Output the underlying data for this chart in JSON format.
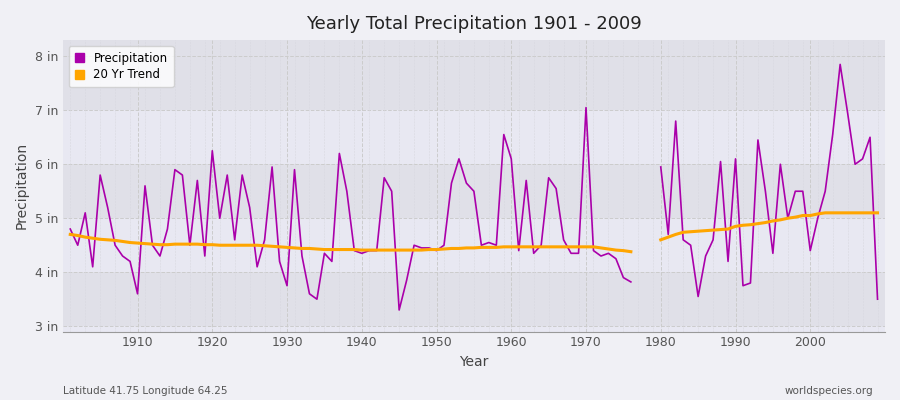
{
  "title": "Yearly Total Precipitation 1901 - 2009",
  "xlabel": "Year",
  "ylabel": "Precipitation",
  "lat_lon_label": "Latitude 41.75 Longitude 64.25",
  "source_label": "worldspecies.org",
  "years": [
    1901,
    1902,
    1903,
    1904,
    1905,
    1906,
    1907,
    1908,
    1909,
    1910,
    1911,
    1912,
    1913,
    1914,
    1915,
    1916,
    1917,
    1918,
    1919,
    1920,
    1921,
    1922,
    1923,
    1924,
    1925,
    1926,
    1927,
    1928,
    1929,
    1930,
    1931,
    1932,
    1933,
    1934,
    1935,
    1936,
    1937,
    1938,
    1939,
    1940,
    1941,
    1942,
    1943,
    1944,
    1945,
    1946,
    1947,
    1948,
    1949,
    1950,
    1951,
    1952,
    1953,
    1954,
    1955,
    1956,
    1957,
    1958,
    1959,
    1960,
    1961,
    1962,
    1963,
    1964,
    1965,
    1966,
    1967,
    1968,
    1969,
    1970,
    1971,
    1972,
    1973,
    1974,
    1975,
    1976,
    1977,
    1978,
    1979,
    1980,
    1981,
    1982,
    1983,
    1984,
    1985,
    1986,
    1987,
    1988,
    1989,
    1990,
    1991,
    1992,
    1993,
    1994,
    1995,
    1996,
    1997,
    1998,
    1999,
    2000,
    2001,
    2002,
    2003,
    2004,
    2005,
    2006,
    2007,
    2008,
    2009
  ],
  "precip": [
    4.8,
    4.5,
    5.1,
    4.1,
    5.8,
    5.2,
    4.5,
    4.3,
    4.2,
    3.6,
    5.6,
    4.5,
    4.3,
    4.8,
    5.9,
    5.8,
    4.5,
    5.7,
    4.3,
    6.25,
    5.0,
    5.8,
    4.6,
    5.8,
    5.2,
    4.1,
    4.6,
    5.95,
    4.2,
    3.75,
    5.9,
    4.3,
    3.6,
    3.5,
    4.35,
    4.2,
    6.2,
    5.5,
    4.4,
    4.35,
    4.4,
    4.4,
    5.75,
    5.5,
    3.3,
    3.85,
    4.5,
    4.45,
    4.45,
    4.4,
    4.5,
    5.65,
    6.1,
    5.65,
    5.5,
    4.5,
    4.55,
    4.5,
    6.55,
    6.1,
    4.4,
    5.7,
    4.35,
    4.5,
    5.75,
    5.55,
    4.6,
    4.35,
    4.35,
    7.05,
    4.4,
    4.3,
    4.35,
    4.25,
    3.9,
    3.82,
    null,
    null,
    null,
    5.95,
    4.7,
    6.8,
    4.6,
    4.5,
    3.55,
    4.3,
    4.6,
    6.05,
    4.2,
    6.1,
    3.75,
    3.8,
    6.45,
    5.5,
    4.35,
    6.0,
    5.0,
    5.5,
    5.5,
    4.4,
    5.0,
    5.5,
    6.55,
    7.85,
    6.95,
    6.0,
    6.1,
    6.5,
    3.5
  ],
  "trend_segments": [
    {
      "years": [
        1901,
        1902,
        1903,
        1904,
        1905,
        1906,
        1907,
        1908,
        1909,
        1910,
        1911,
        1912,
        1913,
        1914,
        1915,
        1916,
        1917,
        1918,
        1919,
        1920,
        1921,
        1922,
        1923,
        1924,
        1925,
        1926,
        1927,
        1928,
        1929,
        1930,
        1931,
        1932,
        1933,
        1934,
        1935,
        1936,
        1937,
        1938,
        1939,
        1940,
        1941,
        1942,
        1943,
        1944,
        1945,
        1946,
        1947,
        1948,
        1949,
        1950,
        1951,
        1952,
        1953,
        1954,
        1955,
        1956,
        1957,
        1958,
        1959,
        1960,
        1961,
        1962,
        1963,
        1964,
        1965,
        1966,
        1967,
        1968,
        1969,
        1970,
        1971,
        1972,
        1973,
        1974,
        1975,
        1976
      ],
      "values": [
        4.7,
        4.68,
        4.65,
        4.63,
        4.61,
        4.6,
        4.59,
        4.57,
        4.55,
        4.54,
        4.53,
        4.52,
        4.51,
        4.51,
        4.52,
        4.52,
        4.52,
        4.52,
        4.51,
        4.51,
        4.5,
        4.5,
        4.5,
        4.5,
        4.5,
        4.5,
        4.49,
        4.48,
        4.47,
        4.46,
        4.45,
        4.44,
        4.44,
        4.43,
        4.42,
        4.42,
        4.42,
        4.42,
        4.42,
        4.41,
        4.41,
        4.41,
        4.41,
        4.41,
        4.41,
        4.41,
        4.41,
        4.41,
        4.42,
        4.42,
        4.43,
        4.44,
        4.44,
        4.45,
        4.45,
        4.46,
        4.46,
        4.46,
        4.47,
        4.47,
        4.47,
        4.47,
        4.47,
        4.47,
        4.47,
        4.47,
        4.47,
        4.47,
        4.47,
        4.47,
        4.47,
        4.45,
        4.43,
        4.41,
        4.4,
        4.38
      ]
    },
    {
      "years": [
        1980,
        1981,
        1982,
        1983,
        1984,
        1985,
        1986,
        1987,
        1988,
        1989,
        1990,
        1991,
        1992,
        1993,
        1994,
        1995,
        1996,
        1997,
        1998,
        1999,
        2000,
        2001,
        2002,
        2003,
        2004,
        2005,
        2006,
        2007,
        2008,
        2009
      ],
      "values": [
        4.6,
        4.65,
        4.7,
        4.74,
        4.75,
        4.76,
        4.77,
        4.78,
        4.79,
        4.8,
        4.85,
        4.87,
        4.88,
        4.9,
        4.92,
        4.95,
        4.97,
        5.0,
        5.02,
        5.05,
        5.05,
        5.08,
        5.1,
        5.1,
        5.1,
        5.1,
        5.1,
        5.1,
        5.1,
        5.1
      ]
    }
  ],
  "precip_color": "#aa00aa",
  "trend_color": "#ffa500",
  "bg_color": "#f0f0f5",
  "plot_bg_color": "#f0f0f5",
  "plot_inner_bg": "#e8e8f0",
  "grid_color_major": "#d8d8e0",
  "grid_color_minor": "#e0e0e8",
  "band_color_dark": "#e0e0e8",
  "band_color_light": "#e8e8f2",
  "ylim": [
    2.9,
    8.3
  ],
  "yticks": [
    3,
    4,
    5,
    6,
    7,
    8
  ],
  "ytick_labels": [
    "3 in",
    "4 in",
    "5 in",
    "6 in",
    "7 in",
    "8 in"
  ],
  "xlim": [
    1900,
    2010
  ],
  "xticks": [
    1910,
    1920,
    1930,
    1940,
    1950,
    1960,
    1970,
    1980,
    1990,
    2000
  ]
}
